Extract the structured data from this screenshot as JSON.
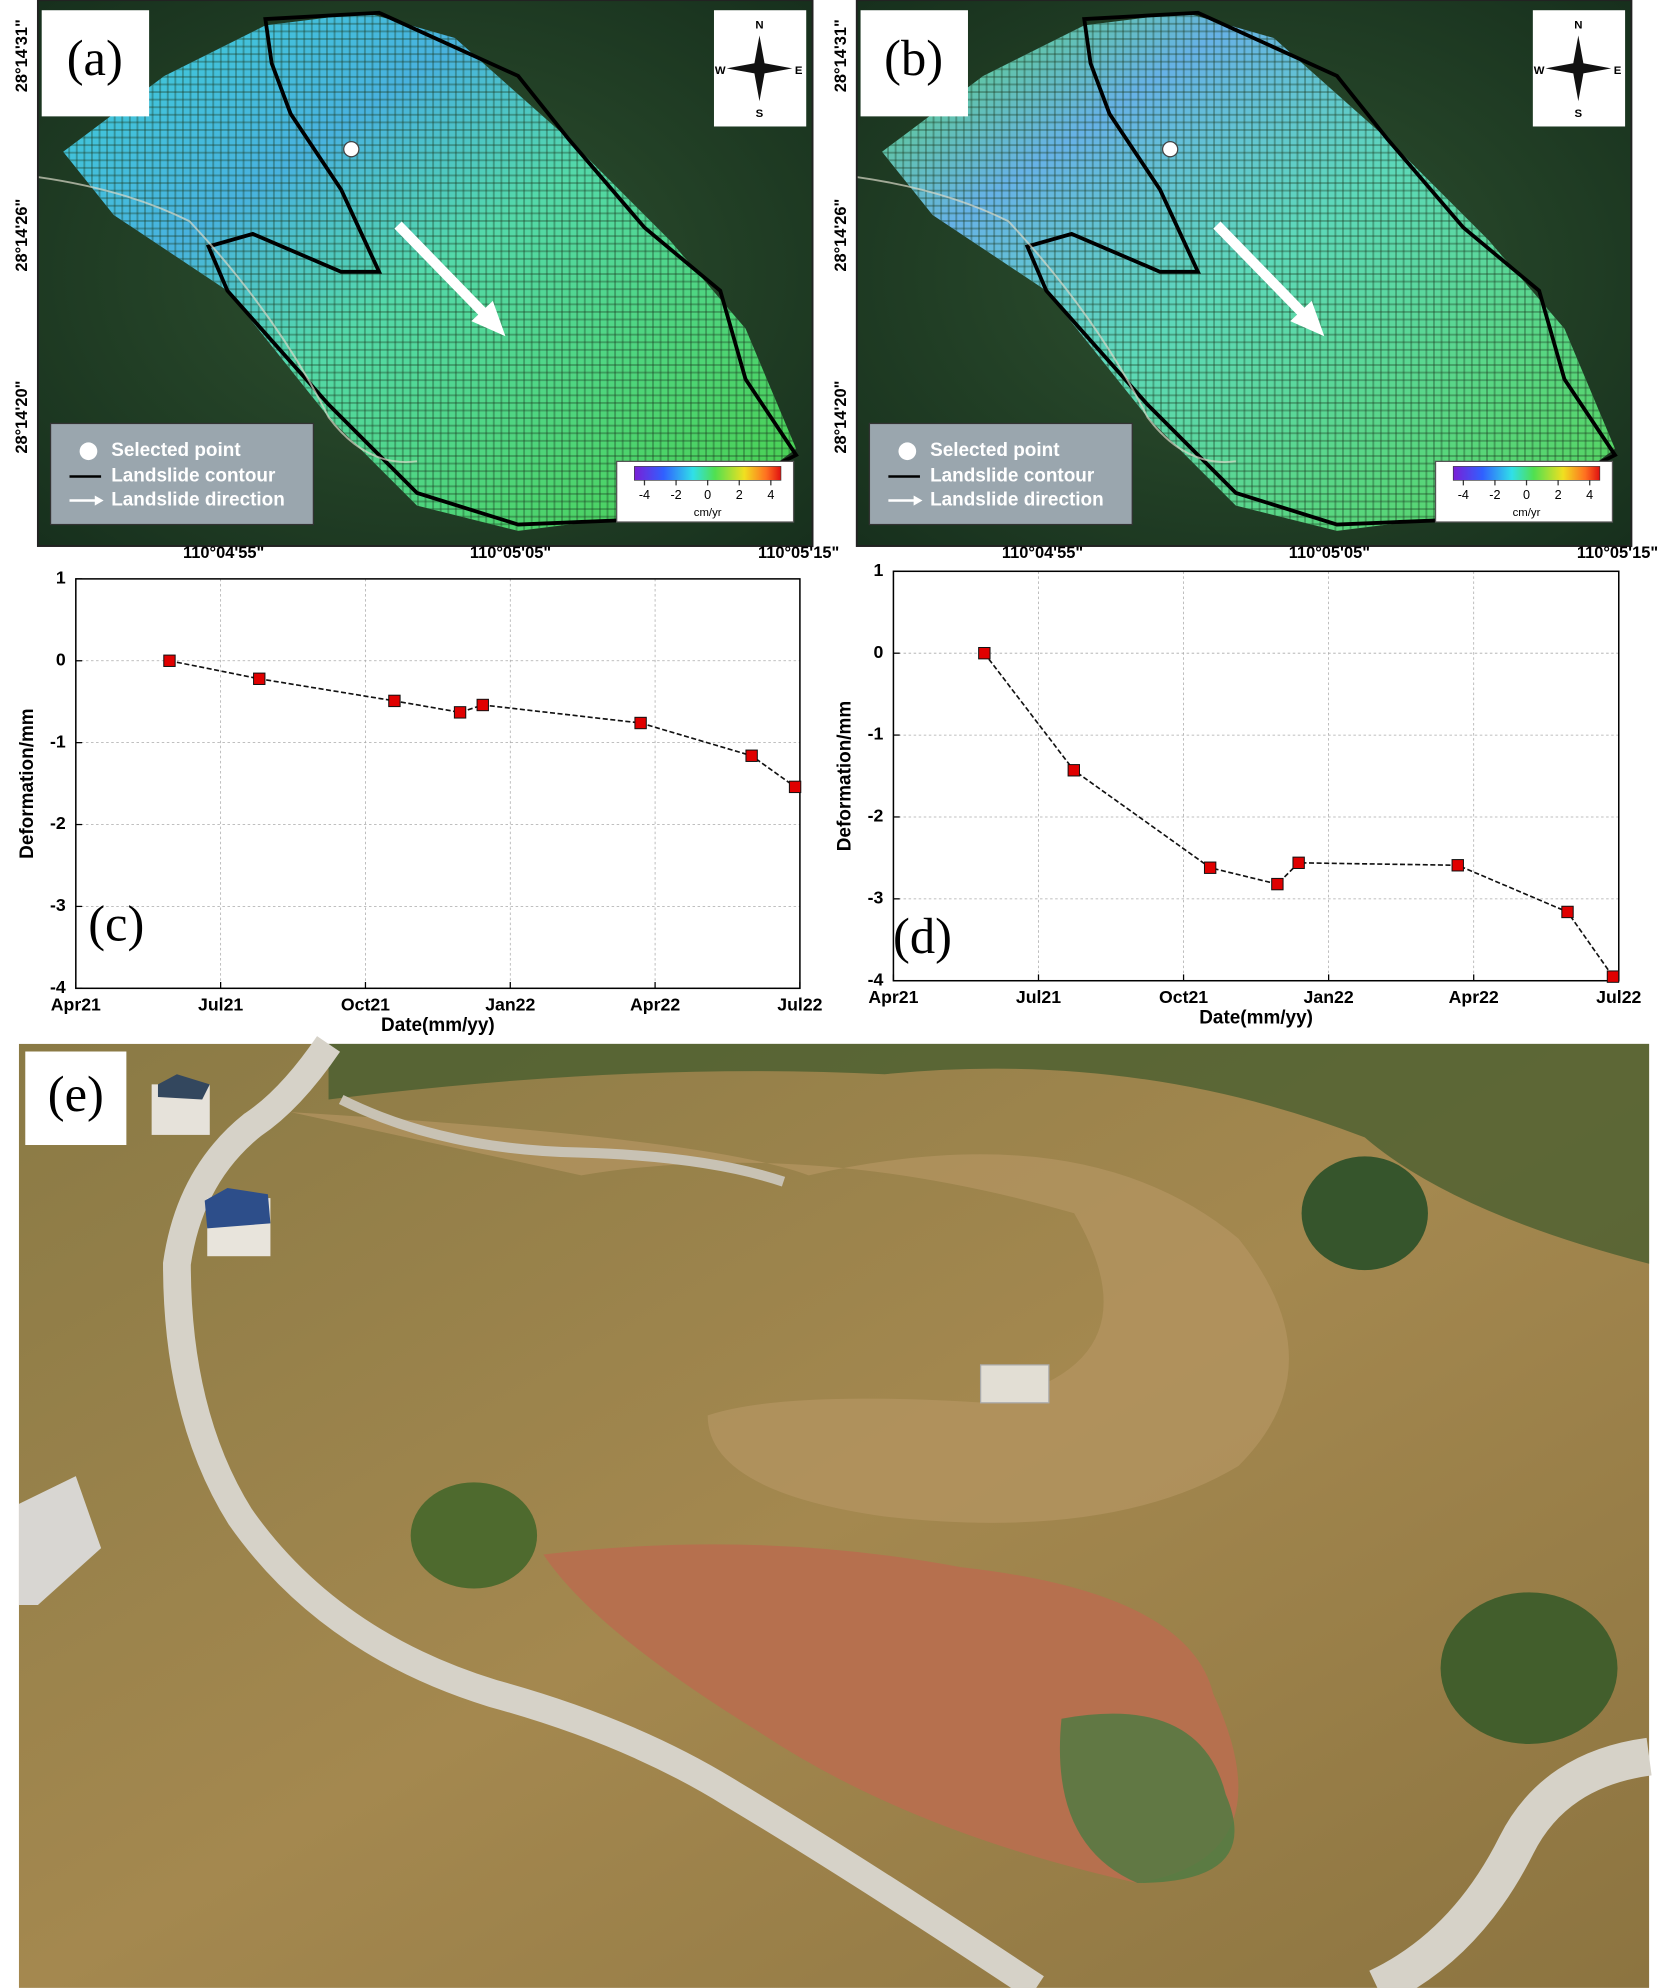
{
  "maps": [
    {
      "label": "(a)"
    },
    {
      "label": "(b)"
    }
  ],
  "map_common": {
    "lat_labels": [
      "28°14'31\"",
      "28°14'26\"",
      "28°14'20\""
    ],
    "lon_labels": [
      "110°04'55\"",
      "110°05'05\"",
      "110°05'15\""
    ],
    "compass": [
      "N",
      "E",
      "S",
      "W"
    ],
    "legend": [
      "Selected point",
      "Landslide contour",
      "Landslide direction"
    ],
    "colorbar": {
      "ticks": [
        -4,
        -2,
        0,
        2,
        4
      ],
      "unit": "cm/yr"
    }
  },
  "chart_data": [
    {
      "type": "line",
      "label": "(c)",
      "xlabel": "Date(mm/yy)",
      "ylabel": "Deformation/mm",
      "x": [
        1.94,
        3.8,
        6.6,
        7.96,
        8.43,
        11.7,
        14.0,
        14.9
      ],
      "values": [
        0,
        -0.22,
        -0.49,
        -0.63,
        -0.54,
        -0.76,
        -1.16,
        -1.54
      ],
      "color": "#e00000",
      "xlim": [
        0,
        15
      ],
      "xticks": [
        {
          "value": 0,
          "label": "Apr21"
        },
        {
          "value": 3,
          "label": "Jul21"
        },
        {
          "value": 6,
          "label": "Oct21"
        },
        {
          "value": 9,
          "label": "Jan22"
        },
        {
          "value": 12,
          "label": "Apr22"
        },
        {
          "value": 15,
          "label": "Jul22"
        }
      ],
      "ylim": [
        -4,
        1
      ],
      "yticks": [
        -4,
        -3,
        -2,
        -1,
        0,
        1
      ],
      "grid": true
    },
    {
      "type": "line",
      "label": "(d)",
      "xlabel": "Date(mm/yy)",
      "ylabel": "Deformation/mm",
      "x": [
        1.88,
        3.73,
        6.55,
        7.94,
        8.38,
        11.67,
        13.94,
        14.88
      ],
      "values": [
        0,
        -1.43,
        -2.62,
        -2.82,
        -2.56,
        -2.59,
        -3.16,
        -3.95
      ],
      "color": "#e00000",
      "xlim": [
        0,
        15
      ],
      "xticks": [
        {
          "value": 0,
          "label": "Apr21"
        },
        {
          "value": 3,
          "label": "Jul21"
        },
        {
          "value": 6,
          "label": "Oct21"
        },
        {
          "value": 9,
          "label": "Jan22"
        },
        {
          "value": 12,
          "label": "Apr22"
        },
        {
          "value": 15,
          "label": "Jul22"
        }
      ],
      "ylim": [
        -4,
        1
      ],
      "yticks": [
        -4,
        -3,
        -2,
        -1,
        0,
        1
      ],
      "grid": true
    }
  ],
  "photo": {
    "label": "(e)"
  }
}
